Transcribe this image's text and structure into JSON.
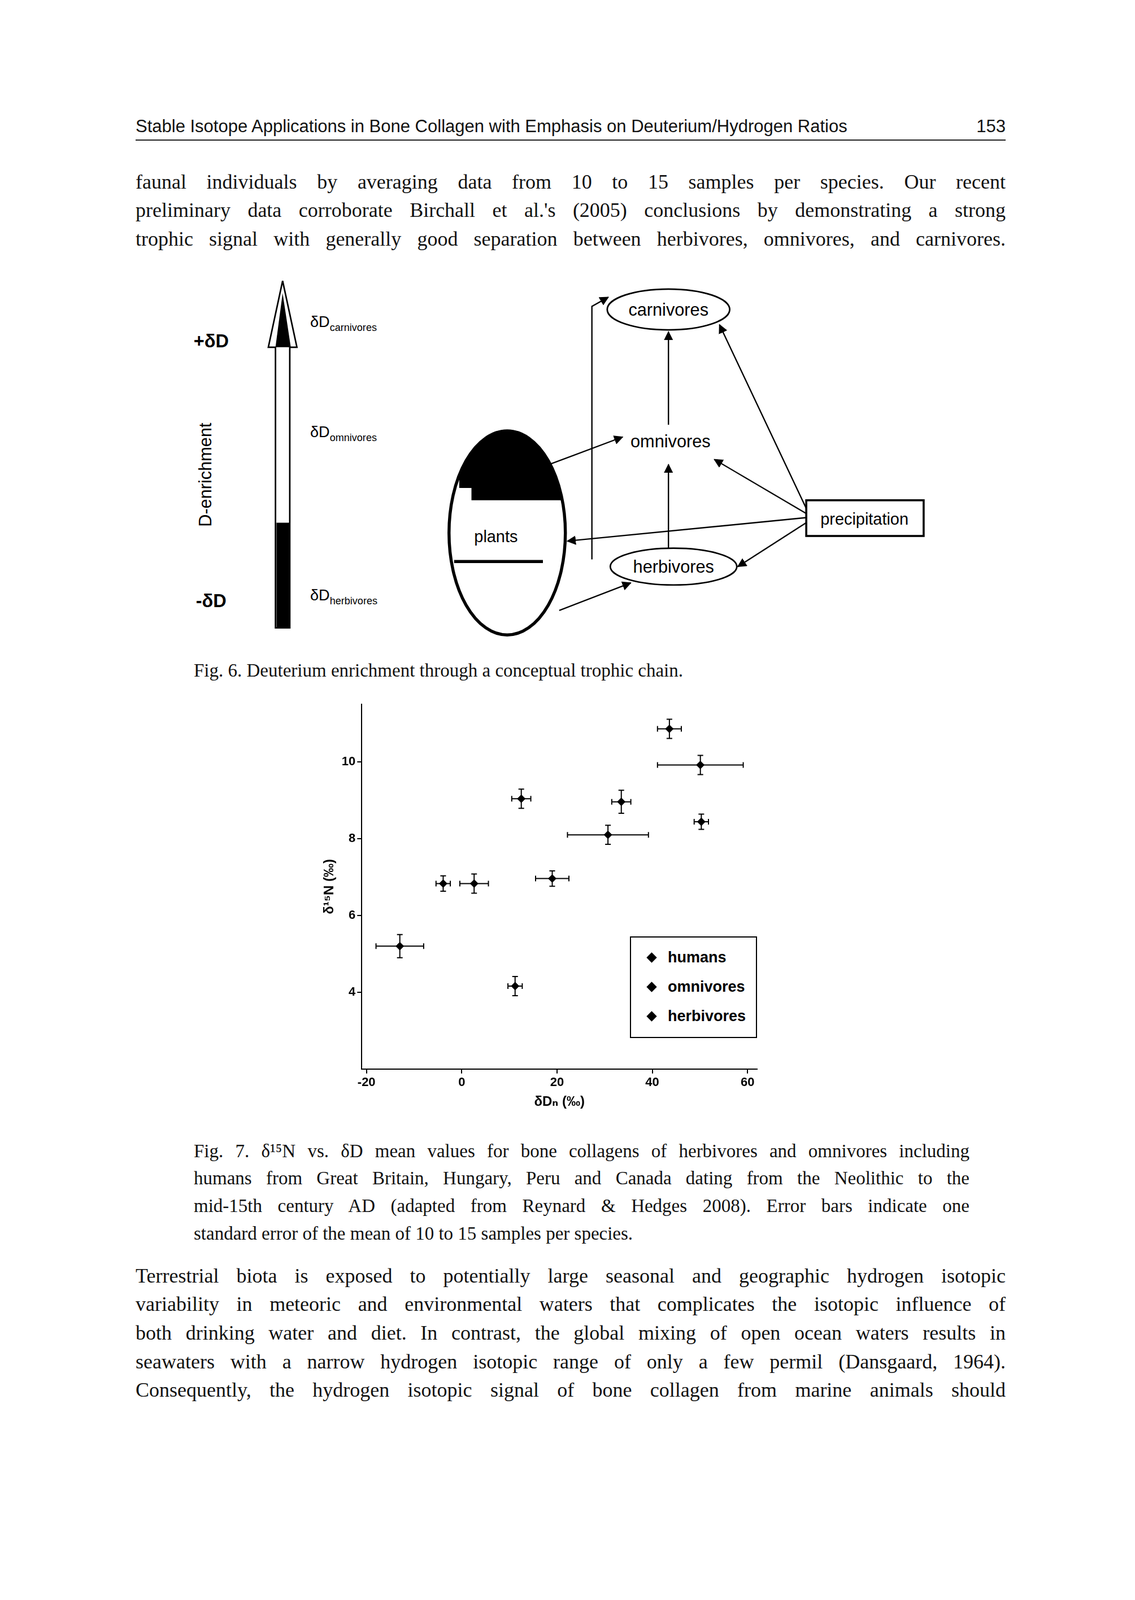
{
  "header": {
    "title": "Stable Isotope Applications in Bone Collagen with Emphasis on Deuterium/Hydrogen Ratios",
    "page": "153"
  },
  "paragraph_1": [
    "faunal individuals by averaging data from 10 to 15 samples per species. Our recent",
    "preliminary data corroborate Birchall et al.'s (2005) conclusions by demonstrating a strong",
    "trophic signal with generally good separation between herbivores, omnivores, and carnivores."
  ],
  "figure_6": {
    "plus_label": "+δD",
    "minus_label": "-δD",
    "axis_label": "D-enrichment",
    "levels": [
      {
        "symbol": "δD",
        "subscript": "carnivores"
      },
      {
        "symbol": "δD",
        "subscript": "omnivores"
      },
      {
        "symbol": "δD",
        "subscript": "herbivores"
      }
    ],
    "nodes": [
      "carnivores",
      "omnivores",
      "plants",
      "herbivores",
      "precipitation"
    ],
    "caption": "Fig. 6. Deuterium enrichment through a conceptual trophic chain."
  },
  "chart_data": {
    "type": "scatter",
    "x_label": "δDₙ (‰)",
    "y_label": "δ¹⁵N (‰)",
    "xlim": [
      -21,
      62
    ],
    "xticks": [
      -20,
      0,
      20,
      40,
      60
    ],
    "ylim": [
      2,
      11.5
    ],
    "yticks": [
      4,
      6,
      8,
      10
    ],
    "grid": false,
    "legend": "lower right",
    "series": [
      {
        "name": "humans",
        "color": "#000000",
        "marker": "diamond",
        "x": [
          30.7,
          33.5,
          43.6,
          50.1,
          50.3
        ],
        "y": [
          8.1,
          8.96,
          10.86,
          9.92,
          8.44
        ],
        "x_err": [
          8.5,
          2,
          2.5,
          9,
          1.5
        ],
        "y_err": [
          0.25,
          0.3,
          0.25,
          0.25,
          0.2
        ]
      },
      {
        "name": "omnivores",
        "color": "#000000",
        "marker": "diamond",
        "x": [
          12.5,
          19
        ],
        "y": [
          9.04,
          6.96
        ],
        "x_err": [
          2,
          3.5
        ],
        "y_err": [
          0.25,
          0.2
        ]
      },
      {
        "name": "herbivores",
        "color": "#000000",
        "marker": "diamond",
        "x": [
          -13,
          -3.9,
          2.6,
          11.2
        ],
        "y": [
          5.2,
          6.83,
          6.83,
          4.16
        ],
        "x_err": [
          5,
          1.5,
          3,
          1.5
        ],
        "y_err": [
          0.3,
          0.2,
          0.25,
          0.25
        ]
      }
    ]
  },
  "figure_7_caption": [
    "Fig. 7. δ¹⁵N vs. δD mean values for bone collagens of herbivores and omnivores including",
    "humans from Great Britain, Hungary, Peru and Canada dating from the Neolithic to the",
    "mid-15th century AD (adapted from Reynard & Hedges 2008). Error bars indicate one",
    "standard error of the mean of 10 to 15 samples per species."
  ],
  "paragraph_2": [
    "Terrestrial biota is exposed to potentially large seasonal and geographic hydrogen isotopic",
    "variability in meteoric and environmental waters that complicates the isotopic influence of",
    "both drinking water and diet. In contrast, the global mixing of open ocean waters results in",
    "seawaters with a narrow hydrogen isotopic range of only a few permil (Dansgaard, 1964).",
    "Consequently, the hydrogen isotopic signal of bone collagen from marine animals should"
  ]
}
